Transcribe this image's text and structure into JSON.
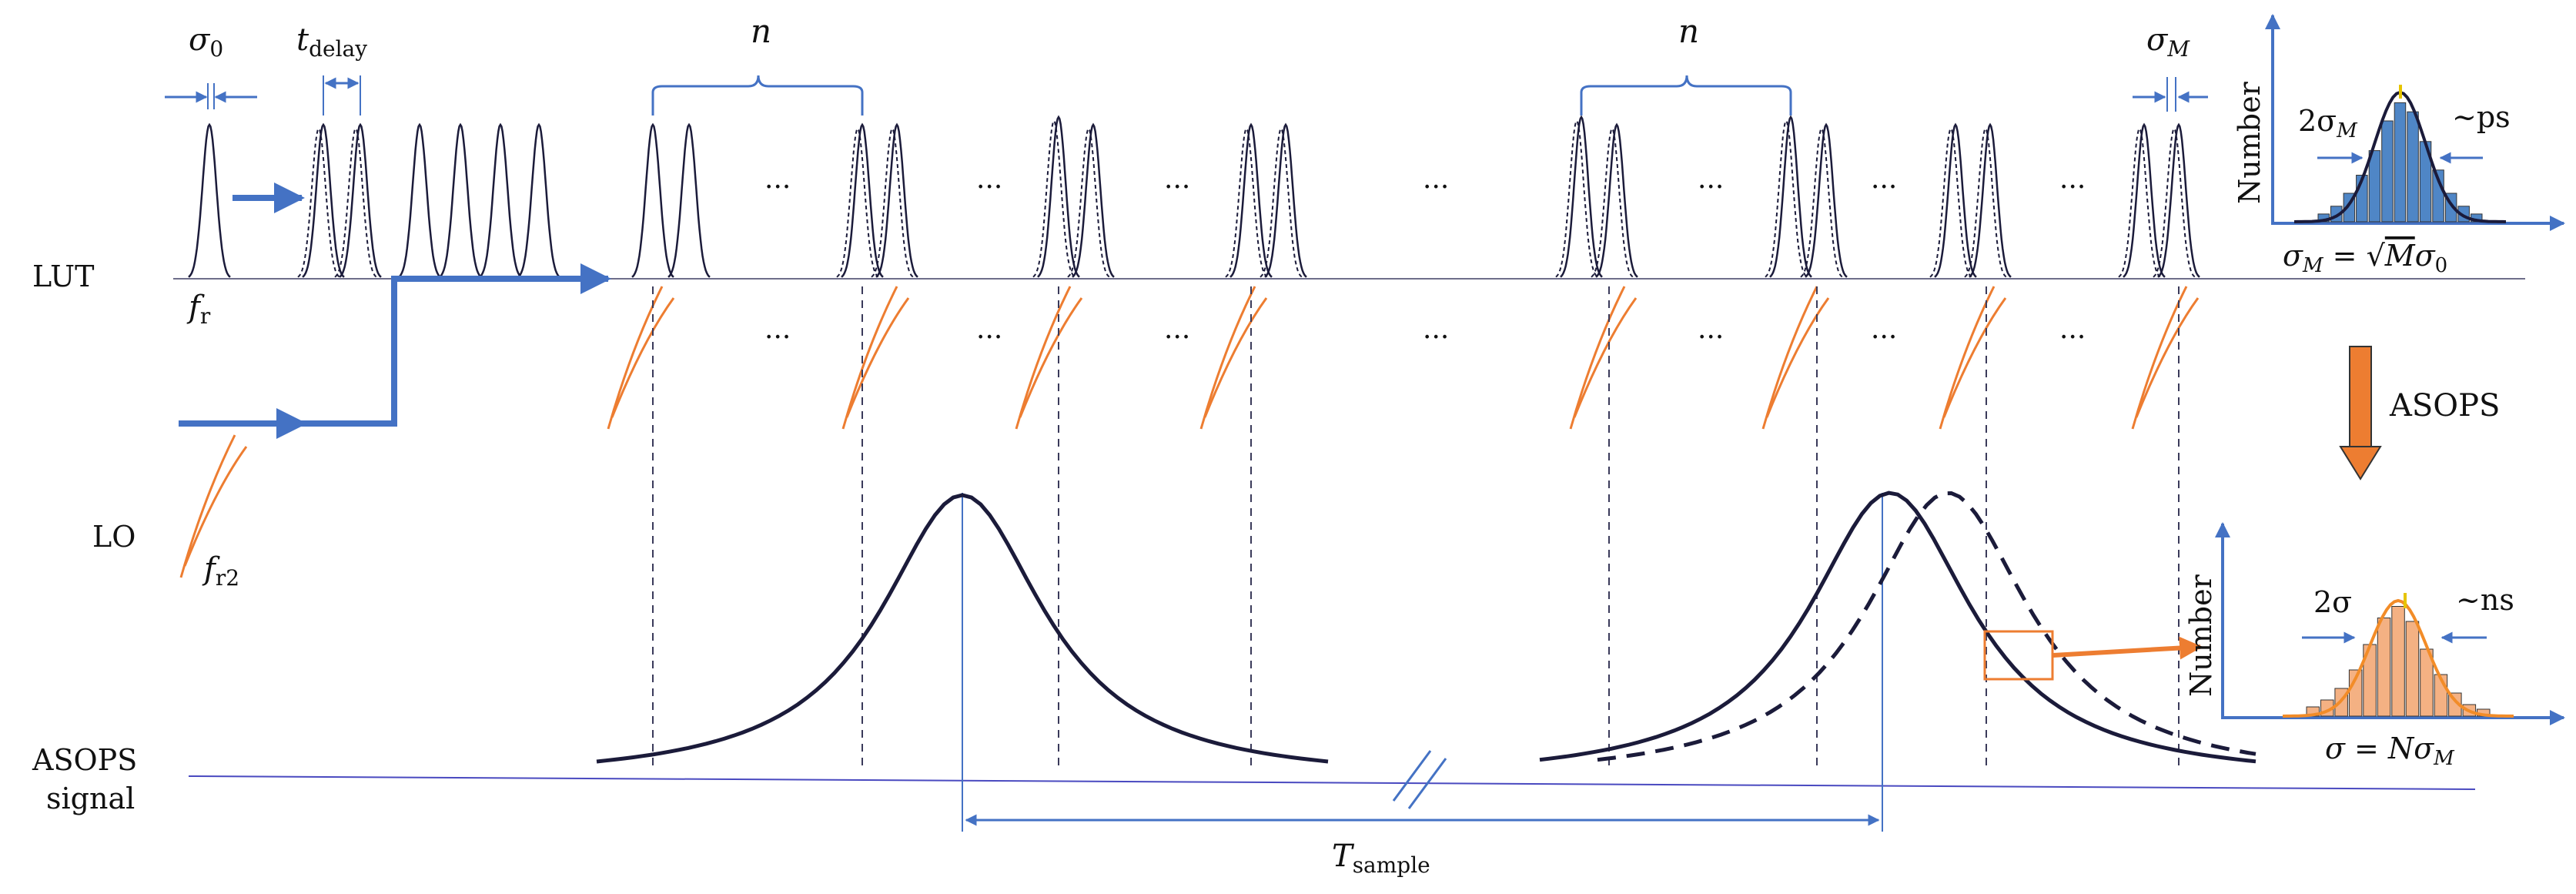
{
  "labels": {
    "lut": "LUT",
    "lo": "LO",
    "asops_signal_line1": "ASOPS",
    "asops_signal_line2": "signal",
    "asops_arrow": "ASOPS",
    "fr": "f",
    "fr_sub": "r",
    "fr2": "f",
    "fr2_sub": "r2",
    "sigma0": "σ",
    "sigma0_sub": "0",
    "tdelay": "t",
    "tdelay_sub": "delay",
    "n_left": "n",
    "n_right": "n",
    "sigmaM": "σ",
    "sigmaM_sub": "M",
    "tsample": "T",
    "tsample_sub": "sample",
    "ellipsis": "···"
  },
  "inset_top": {
    "ylabel": "Number",
    "width_label": "2σ",
    "width_label_sub": "M",
    "scale_label": "~ps",
    "formula_lhs": "σ",
    "formula_lhs_sub": "M",
    "formula_eq": " = ",
    "formula_rhs_var": "M",
    "formula_rhs_sigma": "σ",
    "formula_rhs_sub": "0",
    "bars": [
      0.06,
      0.12,
      0.22,
      0.36,
      0.55,
      0.78,
      0.92,
      0.85,
      0.62,
      0.4,
      0.22,
      0.12,
      0.06
    ],
    "bar_color": "#4f86c6",
    "curve_color": "#1b1b3a"
  },
  "inset_bottom": {
    "ylabel": "Number",
    "width_label": "2σ",
    "scale_label": "~ns",
    "formula_lhs": "σ",
    "formula_eq": " = ",
    "formula_rhs_var": "N",
    "formula_rhs_sigma": "σ",
    "formula_rhs_sub": "M",
    "bars": [
      0.08,
      0.14,
      0.24,
      0.4,
      0.62,
      0.85,
      0.95,
      0.82,
      0.58,
      0.36,
      0.2,
      0.1,
      0.06
    ],
    "bar_color": "#f4b183",
    "curve_color": "#f28c28"
  },
  "colors": {
    "pulse": "#1b1b3a",
    "blue": "#4472c4",
    "orange": "#ed7d31",
    "dashed": "#3a3a5a"
  }
}
